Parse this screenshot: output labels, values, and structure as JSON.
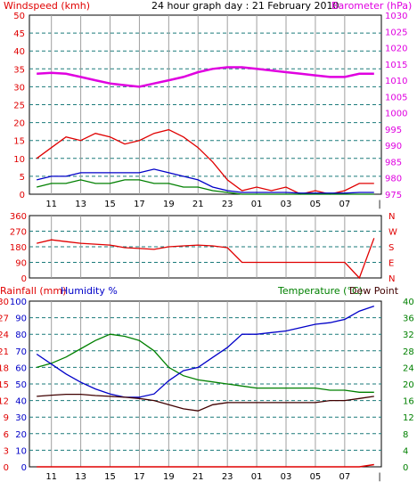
{
  "title": "24 hour graph day : 21 February 2010",
  "colors": {
    "wind": "#e00000",
    "gust": "#e00000",
    "wind_avg": "#0000c8",
    "wind_green": "#008000",
    "barometer": "#e000e0",
    "temperature": "#008000",
    "humidity": "#0000c8",
    "dewpoint": "#400000",
    "rainfall": "#e00000",
    "grid": "#1a7a7a",
    "vgrid": "#a0a0a0"
  },
  "x_labels": [
    "11",
    "13",
    "15",
    "17",
    "19",
    "21",
    "23",
    "01",
    "03",
    "05",
    "07"
  ],
  "x_end_label": "|",
  "chart_data": [
    {
      "type": "line",
      "name": "wind-barometer",
      "left_label": "Windspeed (kmh)",
      "right_label": "Barometer (hPa)",
      "left_ticks": [
        "50",
        "45",
        "40",
        "35",
        "30",
        "25",
        "20",
        "15",
        "10",
        "5",
        "0"
      ],
      "right_ticks": [
        "1030",
        "1025",
        "1020",
        "1015",
        "1010",
        "1005",
        "1000",
        "995",
        "990",
        "985",
        "980",
        "975"
      ],
      "left_range": [
        0,
        50
      ],
      "right_range": [
        975,
        1030
      ],
      "hours": [
        10,
        11,
        12,
        13,
        14,
        15,
        16,
        17,
        18,
        19,
        20,
        21,
        22,
        23,
        24,
        25,
        26,
        27,
        28,
        29,
        30,
        31,
        32,
        33
      ],
      "series": [
        {
          "key": "barometer",
          "values": [
            1012,
            1012.3,
            1012,
            1011,
            1010,
            1009,
            1008.5,
            1008,
            1009,
            1010,
            1011,
            1012.5,
            1013.5,
            1014,
            1014,
            1013.5,
            1013,
            1012.5,
            1012,
            1011.5,
            1011,
            1011,
            1012,
            1012
          ]
        },
        {
          "key": "gust",
          "values": [
            10,
            13,
            16,
            15,
            17,
            16,
            14,
            15,
            17,
            18,
            16,
            13,
            9,
            4,
            1,
            2,
            1,
            2,
            0,
            1,
            0,
            1,
            3,
            3
          ]
        },
        {
          "key": "wind_avg",
          "values": [
            4,
            5,
            5,
            6,
            6,
            6,
            6,
            6,
            7,
            6,
            5,
            4,
            2,
            1,
            0.5,
            0.5,
            0.5,
            0.5,
            0.3,
            0.3,
            0.3,
            0.3,
            0.5,
            0.5
          ]
        },
        {
          "key": "wind_green",
          "values": [
            2,
            3,
            3,
            4,
            3,
            3,
            4,
            4,
            3,
            3,
            2,
            2,
            1,
            0.5,
            0,
            0,
            0,
            0,
            0,
            0,
            0,
            0,
            0,
            0
          ]
        }
      ]
    },
    {
      "type": "line",
      "name": "wind-direction",
      "left_ticks": [
        "360",
        "270",
        "180",
        "90",
        "0"
      ],
      "right_ticks": [
        "N",
        "W",
        "S",
        "E",
        "N"
      ],
      "range": [
        0,
        360
      ],
      "hours": [
        10,
        11,
        12,
        13,
        14,
        15,
        16,
        17,
        18,
        19,
        20,
        21,
        22,
        23,
        24,
        25,
        26,
        27,
        28,
        29,
        30,
        31,
        32,
        33
      ],
      "series": [
        {
          "key": "direction",
          "values": [
            200,
            220,
            210,
            200,
            195,
            190,
            175,
            170,
            165,
            180,
            185,
            190,
            185,
            175,
            90,
            90,
            90,
            90,
            90,
            90,
            90,
            90,
            0,
            230
          ]
        }
      ]
    },
    {
      "type": "line",
      "name": "temperature-humidity",
      "left_label_rain": "Rainfall (mm)",
      "left_label_hum": "Humidity %",
      "right_label_temp": "Temperature (°C)",
      "right_label_dew": "Dew Point",
      "rain_ticks": [
        "30",
        "27",
        "24",
        "21",
        "18",
        "15",
        "12",
        "9",
        "6",
        "3",
        "0"
      ],
      "hum_ticks": [
        "100",
        "90",
        "80",
        "70",
        "60",
        "50",
        "40",
        "30",
        "20",
        "10",
        "0"
      ],
      "temp_ticks": [
        "40",
        "36",
        "32",
        "28",
        "24",
        "20",
        "16",
        "12",
        "8",
        "4",
        "0"
      ],
      "temp_range": [
        0,
        40
      ],
      "hum_range": [
        0,
        100
      ],
      "hours": [
        10,
        11,
        12,
        13,
        14,
        15,
        16,
        17,
        18,
        19,
        20,
        21,
        22,
        23,
        24,
        25,
        26,
        27,
        28,
        29,
        30,
        31,
        32,
        33
      ],
      "series": [
        {
          "key": "temperature",
          "values": [
            24,
            25,
            26.5,
            28.5,
            30.5,
            32,
            31.5,
            30.5,
            28,
            24,
            22,
            21,
            20.5,
            20,
            19.5,
            19,
            19,
            19,
            19,
            19,
            18.5,
            18.5,
            18,
            18
          ]
        },
        {
          "key": "humidity",
          "values": [
            68,
            62,
            56,
            51,
            47,
            44,
            42,
            42,
            44,
            52,
            58,
            60,
            66,
            72,
            80,
            80,
            81,
            82,
            84,
            86,
            87,
            89,
            94,
            97
          ]
        },
        {
          "key": "dewpoint",
          "values": [
            17,
            17.3,
            17.5,
            17.5,
            17.2,
            17,
            16.8,
            16.5,
            16,
            15,
            14,
            13.5,
            15,
            15.5,
            15.5,
            15.5,
            15.5,
            15.5,
            15.5,
            15.5,
            16,
            16,
            16.5,
            17
          ]
        },
        {
          "key": "rainfall",
          "values": [
            0,
            0,
            0,
            0,
            0,
            0,
            0,
            0,
            0,
            0,
            0,
            0,
            0,
            0,
            0,
            0,
            0,
            0,
            0,
            0,
            0,
            0,
            0,
            0.4
          ]
        }
      ]
    }
  ]
}
